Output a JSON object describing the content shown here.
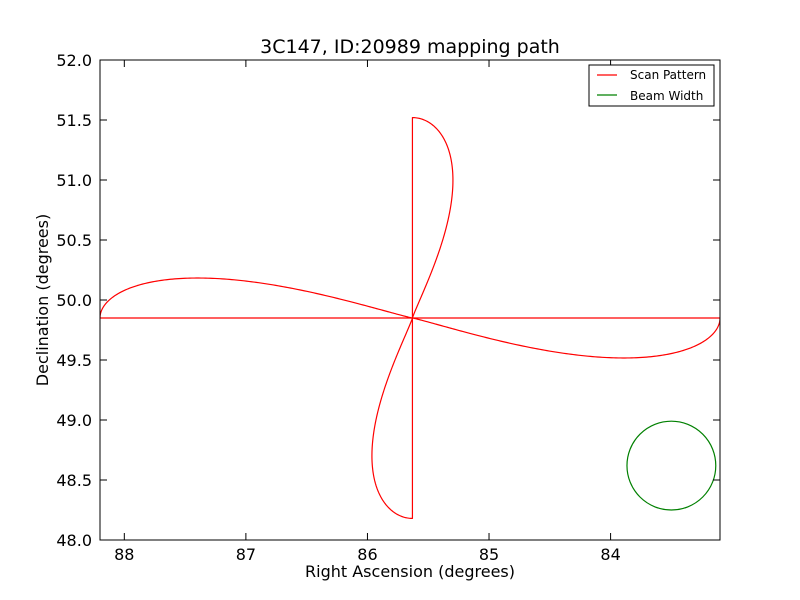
{
  "chart_data": {
    "type": "line",
    "title": "3C147, ID:20989 mapping path",
    "xlabel": "Right Ascension (degrees)",
    "ylabel": "Declination (degrees)",
    "xlim": [
      88.2,
      83.1
    ],
    "ylim": [
      48.0,
      52.0
    ],
    "x_ticks": [
      88,
      87,
      86,
      85,
      84
    ],
    "x_tick_labels": [
      "88",
      "87",
      "86",
      "85",
      "84"
    ],
    "y_ticks": [
      48.0,
      48.5,
      49.0,
      49.5,
      50.0,
      50.5,
      51.0,
      51.5,
      52.0
    ],
    "y_tick_labels": [
      "48.0",
      "48.5",
      "49.0",
      "49.5",
      "50.0",
      "50.5",
      "51.0",
      "51.5",
      "52.0"
    ],
    "grid": false,
    "legend_position": "top-right",
    "series": [
      {
        "name": "Scan Pattern",
        "color": "#ff0000",
        "pattern": "four-lobed daisy (rosette) scan",
        "center": [
          85.63,
          49.85
        ],
        "lobes": [
          {
            "direction": "north",
            "extreme": 51.52
          },
          {
            "direction": "south",
            "extreme": 48.18
          },
          {
            "direction": "east",
            "extreme": 88.2
          },
          {
            "direction": "west",
            "extreme": 83.1
          }
        ],
        "lobe_half_width": 0.45
      },
      {
        "name": "Beam Width",
        "color": "#008000",
        "shape": "circle",
        "center": [
          83.5,
          48.62
        ],
        "radius": 0.37
      }
    ]
  }
}
